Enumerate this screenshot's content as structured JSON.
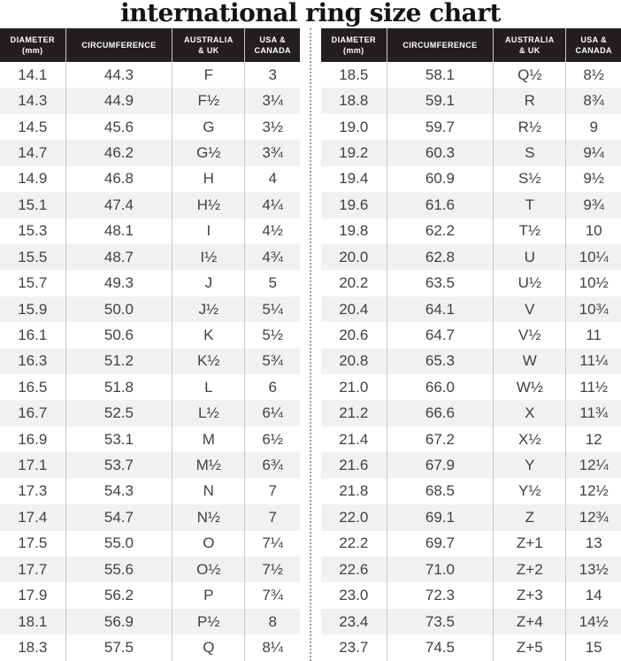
{
  "title": "international ring size chart",
  "colors": {
    "header_bg": "#231f20",
    "header_text": "#ffffff",
    "body_text": "#414042",
    "stripe": "#f1f1f2",
    "divider": "#9a9a9a",
    "grid_line": "#c9c9c9",
    "title_color": "#171314"
  },
  "chart_data": {
    "type": "table",
    "title": "international ring size chart",
    "tables": [
      {
        "columns": [
          "DIAMETER\n(mm)",
          "CIRCUMFERENCE",
          "AUSTRALIA\n& UK",
          "USA &\nCANADA"
        ],
        "rows": [
          [
            "14.1",
            "44.3",
            "F",
            "3"
          ],
          [
            "14.3",
            "44.9",
            "F½",
            "3¼"
          ],
          [
            "14.5",
            "45.6",
            "G",
            "3½"
          ],
          [
            "14.7",
            "46.2",
            "G½",
            "3¾"
          ],
          [
            "14.9",
            "46.8",
            "H",
            "4"
          ],
          [
            "15.1",
            "47.4",
            "H½",
            "4¼"
          ],
          [
            "15.3",
            "48.1",
            "I",
            "4½"
          ],
          [
            "15.5",
            "48.7",
            "I½",
            "4¾"
          ],
          [
            "15.7",
            "49.3",
            "J",
            "5"
          ],
          [
            "15.9",
            "50.0",
            "J½",
            "5¼"
          ],
          [
            "16.1",
            "50.6",
            "K",
            "5½"
          ],
          [
            "16.3",
            "51.2",
            "K½",
            "5¾"
          ],
          [
            "16.5",
            "51.8",
            "L",
            "6"
          ],
          [
            "16.7",
            "52.5",
            "L½",
            "6¼"
          ],
          [
            "16.9",
            "53.1",
            "M",
            "6½"
          ],
          [
            "17.1",
            "53.7",
            "M½",
            "6¾"
          ],
          [
            "17.3",
            "54.3",
            "N",
            "7"
          ],
          [
            "17.4",
            "54.7",
            "N½",
            "7"
          ],
          [
            "17.5",
            "55.0",
            "O",
            "7¼"
          ],
          [
            "17.7",
            "55.6",
            "O½",
            "7½"
          ],
          [
            "17.9",
            "56.2",
            "P",
            "7¾"
          ],
          [
            "18.1",
            "56.9",
            "P½",
            "8"
          ],
          [
            "18.3",
            "57.5",
            "Q",
            "8¼"
          ]
        ]
      },
      {
        "columns": [
          "DIAMETER\n(mm)",
          "CIRCUMFERENCE",
          "AUSTRALIA\n& UK",
          "USA &\nCANADA"
        ],
        "rows": [
          [
            "18.5",
            "58.1",
            "Q½",
            "8½"
          ],
          [
            "18.8",
            "59.1",
            "R",
            "8¾"
          ],
          [
            "19.0",
            "59.7",
            "R½",
            "9"
          ],
          [
            "19.2",
            "60.3",
            "S",
            "9¼"
          ],
          [
            "19.4",
            "60.9",
            "S½",
            "9½"
          ],
          [
            "19.6",
            "61.6",
            "T",
            "9¾"
          ],
          [
            "19.8",
            "62.2",
            "T½",
            "10"
          ],
          [
            "20.0",
            "62.8",
            "U",
            "10¼"
          ],
          [
            "20.2",
            "63.5",
            "U½",
            "10½"
          ],
          [
            "20.4",
            "64.1",
            "V",
            "10¾"
          ],
          [
            "20.6",
            "64.7",
            "V½",
            "11"
          ],
          [
            "20.8",
            "65.3",
            "W",
            "11¼"
          ],
          [
            "21.0",
            "66.0",
            "W½",
            "11½"
          ],
          [
            "21.2",
            "66.6",
            "X",
            "11¾"
          ],
          [
            "21.4",
            "67.2",
            "X½",
            "12"
          ],
          [
            "21.6",
            "67.9",
            "Y",
            "12¼"
          ],
          [
            "21.8",
            "68.5",
            "Y½",
            "12½"
          ],
          [
            "22.0",
            "69.1",
            "Z",
            "12¾"
          ],
          [
            "22.2",
            "69.7",
            "Z+1",
            "13"
          ],
          [
            "22.6",
            "71.0",
            "Z+2",
            "13½"
          ],
          [
            "23.0",
            "72.3",
            "Z+3",
            "14"
          ],
          [
            "23.4",
            "73.5",
            "Z+4",
            "14½"
          ],
          [
            "23.7",
            "74.5",
            "Z+5",
            "15"
          ]
        ]
      }
    ]
  }
}
